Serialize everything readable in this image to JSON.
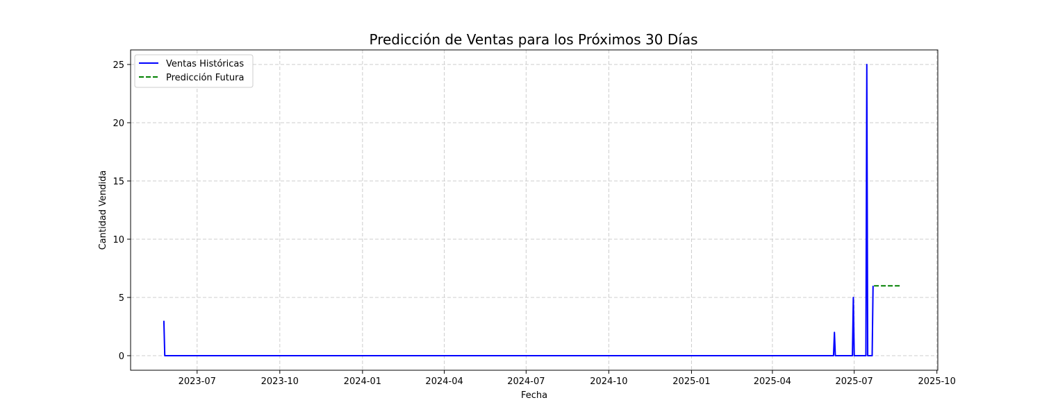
{
  "chart_data": {
    "type": "line",
    "title": "Predicción de Ventas para los Próximos 30 Días",
    "xlabel": "Fecha",
    "ylabel": "Cantidad Vendida",
    "xlim": [
      "2023-04-18",
      "2025-10-02"
    ],
    "ylim": [
      -1.25,
      26.25
    ],
    "x_ticks": [
      "2023-07",
      "2023-10",
      "2024-01",
      "2024-04",
      "2024-07",
      "2024-10",
      "2025-01",
      "2025-04",
      "2025-07",
      "2025-10"
    ],
    "y_ticks": [
      0,
      5,
      10,
      15,
      20,
      25
    ],
    "grid": true,
    "legend_position": "top-left",
    "series": [
      {
        "name": "Ventas Históricas",
        "color": "#0000ff",
        "style": "solid",
        "points": [
          {
            "x": "2023-05-25",
            "y": 3
          },
          {
            "x": "2023-05-26",
            "y": 0
          },
          {
            "x": "2025-06-08",
            "y": 0
          },
          {
            "x": "2025-06-09",
            "y": 2
          },
          {
            "x": "2025-06-10",
            "y": 0
          },
          {
            "x": "2025-06-29",
            "y": 0
          },
          {
            "x": "2025-06-30",
            "y": 5
          },
          {
            "x": "2025-07-01",
            "y": 0
          },
          {
            "x": "2025-07-14",
            "y": 0
          },
          {
            "x": "2025-07-15",
            "y": 25
          },
          {
            "x": "2025-07-16",
            "y": 0
          },
          {
            "x": "2025-07-21",
            "y": 0
          },
          {
            "x": "2025-07-22",
            "y": 6
          }
        ]
      },
      {
        "name": "Predicción Futura",
        "color": "#008000",
        "style": "dashed",
        "points": [
          {
            "x": "2025-07-23",
            "y": 6
          },
          {
            "x": "2025-08-21",
            "y": 6
          }
        ]
      }
    ]
  }
}
